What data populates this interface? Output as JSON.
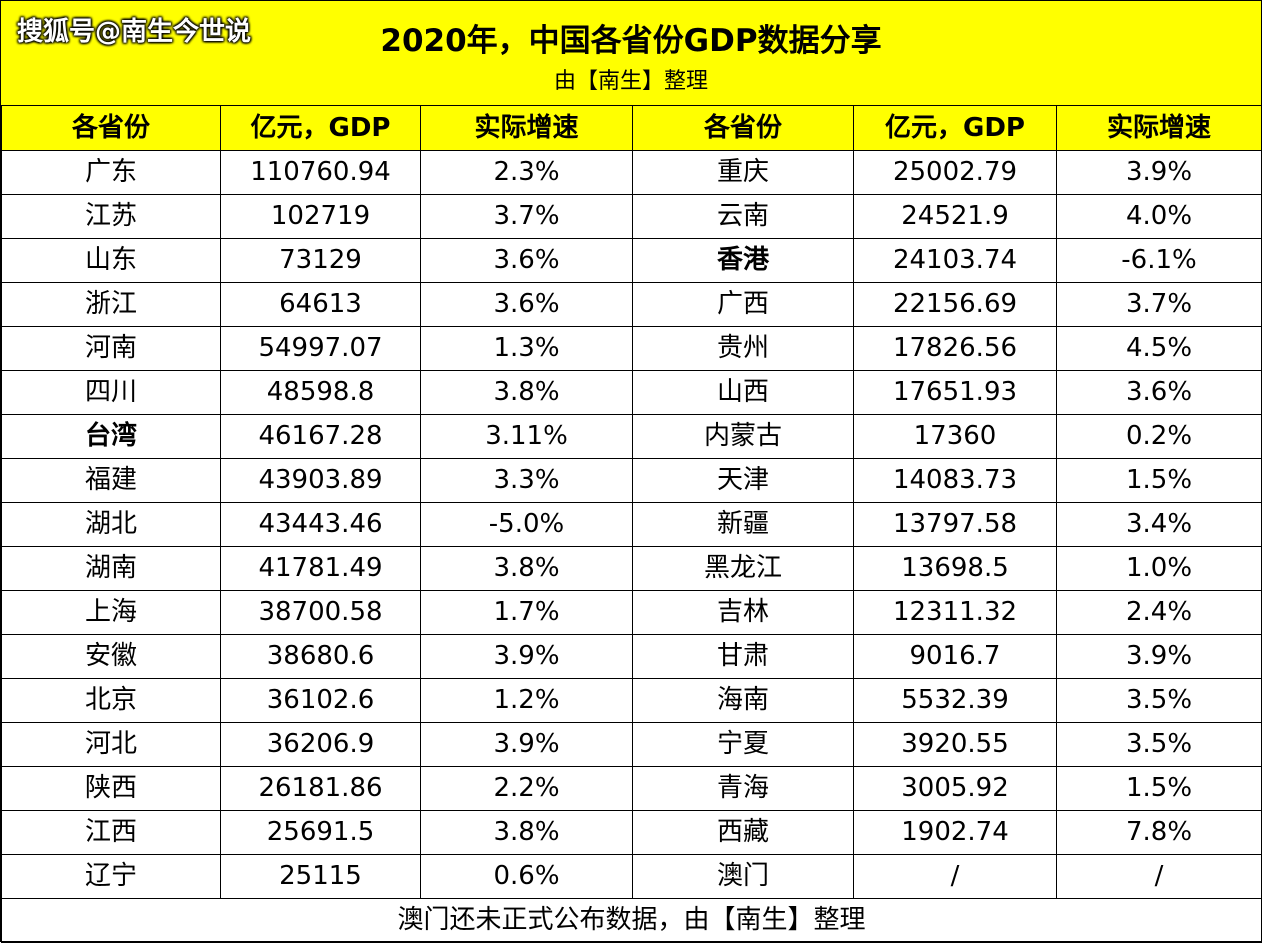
{
  "watermark": "搜狐号@南生今世说",
  "title": "2020年，中国各省份GDP数据分享",
  "subtitle": "由【南生】整理",
  "headers": [
    "各省份",
    "亿元，GDP",
    "实际增速",
    "各省份",
    "亿元，GDP",
    "实际增速"
  ],
  "left_rows": [
    {
      "name": "广东",
      "gdp": "110760.94",
      "growth": "2.3%"
    },
    {
      "name": "江苏",
      "gdp": "102719",
      "growth": "3.7%"
    },
    {
      "name": "山东",
      "gdp": "73129",
      "growth": "3.6%"
    },
    {
      "name": "浙江",
      "gdp": "64613",
      "growth": "3.6%"
    },
    {
      "name": "河南",
      "gdp": "54997.07",
      "growth": "1.3%"
    },
    {
      "name": "四川",
      "gdp": "48598.8",
      "growth": "3.8%"
    },
    {
      "name": "台湾",
      "gdp": "46167.28",
      "growth": "3.11%"
    },
    {
      "name": "福建",
      "gdp": "43903.89",
      "growth": "3.3%"
    },
    {
      "name": "湖北",
      "gdp": "43443.46",
      "growth": "-5.0%"
    },
    {
      "name": "湖南",
      "gdp": "41781.49",
      "growth": "3.8%"
    },
    {
      "name": "上海",
      "gdp": "38700.58",
      "growth": "1.7%"
    },
    {
      "name": "安徽",
      "gdp": "38680.6",
      "growth": "3.9%"
    },
    {
      "name": "北京",
      "gdp": "36102.6",
      "growth": "1.2%"
    },
    {
      "name": "河北",
      "gdp": "36206.9",
      "growth": "3.9%"
    },
    {
      "name": "陕西",
      "gdp": "26181.86",
      "growth": "2.2%"
    },
    {
      "name": "江西",
      "gdp": "25691.5",
      "growth": "3.8%"
    },
    {
      "name": "辽宁",
      "gdp": "25115",
      "growth": "0.6%"
    }
  ],
  "right_rows": [
    {
      "name": "重庆",
      "gdp": "25002.79",
      "growth": "3.9%"
    },
    {
      "name": "云南",
      "gdp": "24521.9",
      "growth": "4.0%"
    },
    {
      "name": "香港",
      "gdp": "24103.74",
      "growth": "-6.1%"
    },
    {
      "name": "广西",
      "gdp": "22156.69",
      "growth": "3.7%"
    },
    {
      "name": "贵州",
      "gdp": "17826.56",
      "growth": "4.5%"
    },
    {
      "name": "山西",
      "gdp": "17651.93",
      "growth": "3.6%"
    },
    {
      "name": "内蒙古",
      "gdp": "17360",
      "growth": "0.2%"
    },
    {
      "name": "天津",
      "gdp": "14083.73",
      "growth": "1.5%"
    },
    {
      "name": "新疆",
      "gdp": "13797.58",
      "growth": "3.4%"
    },
    {
      "name": "黑龙江",
      "gdp": "13698.5",
      "growth": "1.0%"
    },
    {
      "name": "吉林",
      "gdp": "12311.32",
      "growth": "2.4%"
    },
    {
      "name": "甘肃",
      "gdp": "9016.7",
      "growth": "3.9%"
    },
    {
      "name": "海南",
      "gdp": "5532.39",
      "growth": "3.5%"
    },
    {
      "name": "宁夏",
      "gdp": "3920.55",
      "growth": "3.5%"
    },
    {
      "name": "青海",
      "gdp": "3005.92",
      "growth": "1.5%"
    },
    {
      "name": "西藏",
      "gdp": "1902.74",
      "growth": "7.8%"
    },
    {
      "name": "澳门",
      "gdp": "/",
      "growth": "/"
    }
  ],
  "footer": "澳门还未正式公布数据，由【南生】整理",
  "colors": {
    "header_bg": "#ffff00",
    "negative": "#e0201b"
  }
}
